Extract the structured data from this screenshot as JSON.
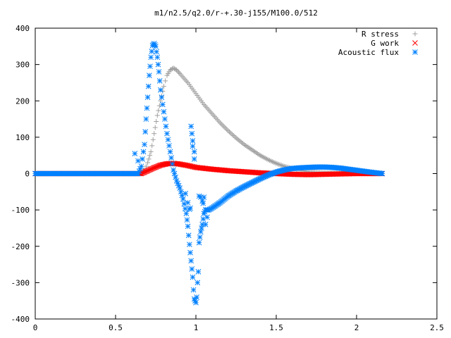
{
  "chart_data": {
    "type": "scatter",
    "title": "m1/n2.5/q2.0/r-+.30-j155/M100.0/512",
    "xlabel": "",
    "ylabel": "",
    "xlim": [
      0,
      2.5
    ],
    "ylim": [
      -400,
      400
    ],
    "xticks": [
      0,
      0.5,
      1,
      1.5,
      2,
      2.5
    ],
    "xtick_labels": [
      "0",
      "0.5",
      "1",
      "1.5",
      "2",
      "2.5"
    ],
    "yticks": [
      -400,
      -300,
      -200,
      -100,
      0,
      100,
      200,
      300,
      400
    ],
    "ytick_labels": [
      "-400",
      "-300",
      "-200",
      "-100",
      "0",
      "100",
      "200",
      "300",
      "400"
    ],
    "grid": false,
    "legend_position": "top-right",
    "series": [
      {
        "name": "R stress",
        "marker": "plus",
        "color": "#a0a0a0",
        "points": [
          [
            0.0,
            0
          ],
          [
            0.1,
            0
          ],
          [
            0.2,
            0
          ],
          [
            0.3,
            0
          ],
          [
            0.4,
            0
          ],
          [
            0.5,
            0
          ],
          [
            0.6,
            0
          ],
          [
            0.66,
            0
          ],
          [
            0.68,
            10
          ],
          [
            0.7,
            30
          ],
          [
            0.72,
            60
          ],
          [
            0.74,
            110
          ],
          [
            0.76,
            160
          ],
          [
            0.78,
            200
          ],
          [
            0.8,
            240
          ],
          [
            0.82,
            270
          ],
          [
            0.84,
            285
          ],
          [
            0.86,
            290
          ],
          [
            0.88,
            285
          ],
          [
            0.9,
            275
          ],
          [
            0.95,
            250
          ],
          [
            1.0,
            220
          ],
          [
            1.05,
            190
          ],
          [
            1.1,
            165
          ],
          [
            1.15,
            140
          ],
          [
            1.2,
            118
          ],
          [
            1.25,
            98
          ],
          [
            1.3,
            80
          ],
          [
            1.35,
            65
          ],
          [
            1.4,
            50
          ],
          [
            1.45,
            38
          ],
          [
            1.5,
            28
          ],
          [
            1.55,
            20
          ],
          [
            1.6,
            14
          ],
          [
            1.65,
            9
          ],
          [
            1.7,
            5
          ],
          [
            1.8,
            2
          ],
          [
            1.9,
            1
          ],
          [
            2.0,
            0
          ],
          [
            2.16,
            0
          ]
        ]
      },
      {
        "name": "G work",
        "marker": "cross",
        "color": "#ff0000",
        "points": [
          [
            0.0,
            0
          ],
          [
            0.2,
            0
          ],
          [
            0.4,
            0
          ],
          [
            0.6,
            0
          ],
          [
            0.66,
            0
          ],
          [
            0.7,
            8
          ],
          [
            0.74,
            16
          ],
          [
            0.78,
            23
          ],
          [
            0.82,
            27
          ],
          [
            0.86,
            28
          ],
          [
            0.9,
            26
          ],
          [
            0.95,
            22
          ],
          [
            1.0,
            17
          ],
          [
            1.1,
            12
          ],
          [
            1.2,
            8
          ],
          [
            1.3,
            5
          ],
          [
            1.4,
            2
          ],
          [
            1.5,
            0
          ],
          [
            1.6,
            -2
          ],
          [
            1.7,
            -3
          ],
          [
            1.8,
            -2
          ],
          [
            1.9,
            -1
          ],
          [
            2.0,
            0
          ],
          [
            2.16,
            0
          ]
        ]
      },
      {
        "name": "Acoustic flux",
        "marker": "star",
        "color": "#0080ff",
        "points": [
          [
            0.0,
            0
          ],
          [
            0.05,
            0
          ],
          [
            0.1,
            0
          ],
          [
            0.15,
            0
          ],
          [
            0.2,
            0
          ],
          [
            0.25,
            0
          ],
          [
            0.3,
            0
          ],
          [
            0.35,
            0
          ],
          [
            0.4,
            0
          ],
          [
            0.45,
            0
          ],
          [
            0.5,
            0
          ],
          [
            0.55,
            0
          ],
          [
            0.6,
            0
          ],
          [
            0.64,
            0
          ],
          [
            0.66,
            20
          ],
          [
            0.68,
            80
          ],
          [
            0.69,
            150
          ],
          [
            0.7,
            210
          ],
          [
            0.71,
            270
          ],
          [
            0.72,
            320
          ],
          [
            0.73,
            352
          ],
          [
            0.74,
            358
          ],
          [
            0.75,
            350
          ],
          [
            0.76,
            320
          ],
          [
            0.77,
            280
          ],
          [
            0.78,
            230
          ],
          [
            0.8,
            170
          ],
          [
            0.82,
            110
          ],
          [
            0.84,
            60
          ],
          [
            0.86,
            10
          ],
          [
            0.88,
            -20
          ],
          [
            0.9,
            -40
          ],
          [
            0.92,
            -70
          ],
          [
            0.94,
            -110
          ],
          [
            0.95,
            -145
          ],
          [
            0.96,
            -195
          ],
          [
            0.97,
            -240
          ],
          [
            0.98,
            -285
          ],
          [
            0.985,
            -320
          ],
          [
            0.99,
            -345
          ],
          [
            1.0,
            -355
          ],
          [
            1.005,
            -340
          ],
          [
            1.01,
            -300
          ],
          [
            1.015,
            -270
          ],
          [
            1.02,
            -190
          ],
          [
            1.03,
            -160
          ],
          [
            1.04,
            -140
          ],
          [
            1.05,
            -110
          ],
          [
            1.06,
            -100
          ],
          [
            1.08,
            -100
          ],
          [
            1.1,
            -95
          ],
          [
            1.15,
            -80
          ],
          [
            1.2,
            -62
          ],
          [
            1.25,
            -48
          ],
          [
            1.3,
            -36
          ],
          [
            1.35,
            -25
          ],
          [
            1.4,
            -14
          ],
          [
            1.45,
            -4
          ],
          [
            1.5,
            4
          ],
          [
            1.55,
            10
          ],
          [
            1.6,
            14
          ],
          [
            1.65,
            16
          ],
          [
            1.7,
            17
          ],
          [
            1.75,
            18
          ],
          [
            1.8,
            18
          ],
          [
            1.85,
            17
          ],
          [
            1.9,
            15
          ],
          [
            1.95,
            12
          ],
          [
            2.0,
            9
          ],
          [
            2.05,
            6
          ],
          [
            2.1,
            3
          ],
          [
            2.16,
            0
          ]
        ],
        "extra_points": [
          [
            0.62,
            55
          ],
          [
            0.64,
            35
          ],
          [
            0.935,
            -55
          ],
          [
            0.95,
            -80
          ],
          [
            0.96,
            -98
          ],
          [
            0.965,
            -95
          ],
          [
            0.97,
            130
          ],
          [
            0.975,
            110
          ],
          [
            0.98,
            90
          ],
          [
            0.98,
            75
          ],
          [
            0.99,
            60
          ],
          [
            0.99,
            40
          ],
          [
            1.02,
            -62
          ],
          [
            1.03,
            -65
          ],
          [
            1.04,
            -75
          ],
          [
            1.045,
            -82
          ],
          [
            1.05,
            -65
          ],
          [
            1.06,
            -140
          ],
          [
            1.07,
            -120
          ]
        ]
      }
    ]
  }
}
